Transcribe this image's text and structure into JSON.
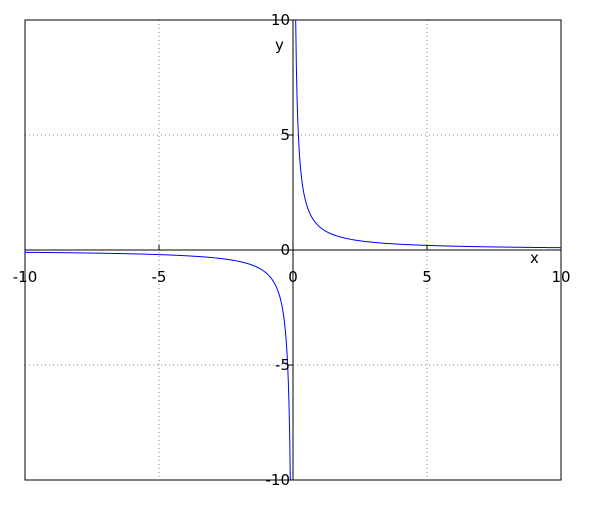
{
  "chart_data": {
    "type": "line",
    "title": "",
    "xlabel": "x",
    "ylabel": "y",
    "xlim": [
      -10,
      10
    ],
    "ylim": [
      -10,
      10
    ],
    "xticks": [
      "-10",
      "-5",
      "0",
      "5",
      "10"
    ],
    "yticks": [
      "-10",
      "-5",
      "0",
      "5",
      "10"
    ],
    "grid": true,
    "grid_style": "dotted",
    "series": [
      {
        "function": "y = 1/x",
        "color": "#0000ff",
        "x": [
          -10,
          -5,
          -2,
          -1,
          -0.5,
          -0.2,
          -0.1,
          0.1,
          0.2,
          0.5,
          1,
          2,
          5,
          10
        ],
        "y": [
          -0.1,
          -0.2,
          -0.5,
          -1,
          -2,
          -5,
          -10,
          10,
          5,
          2,
          1,
          0.5,
          0.2,
          0.1
        ]
      }
    ]
  }
}
